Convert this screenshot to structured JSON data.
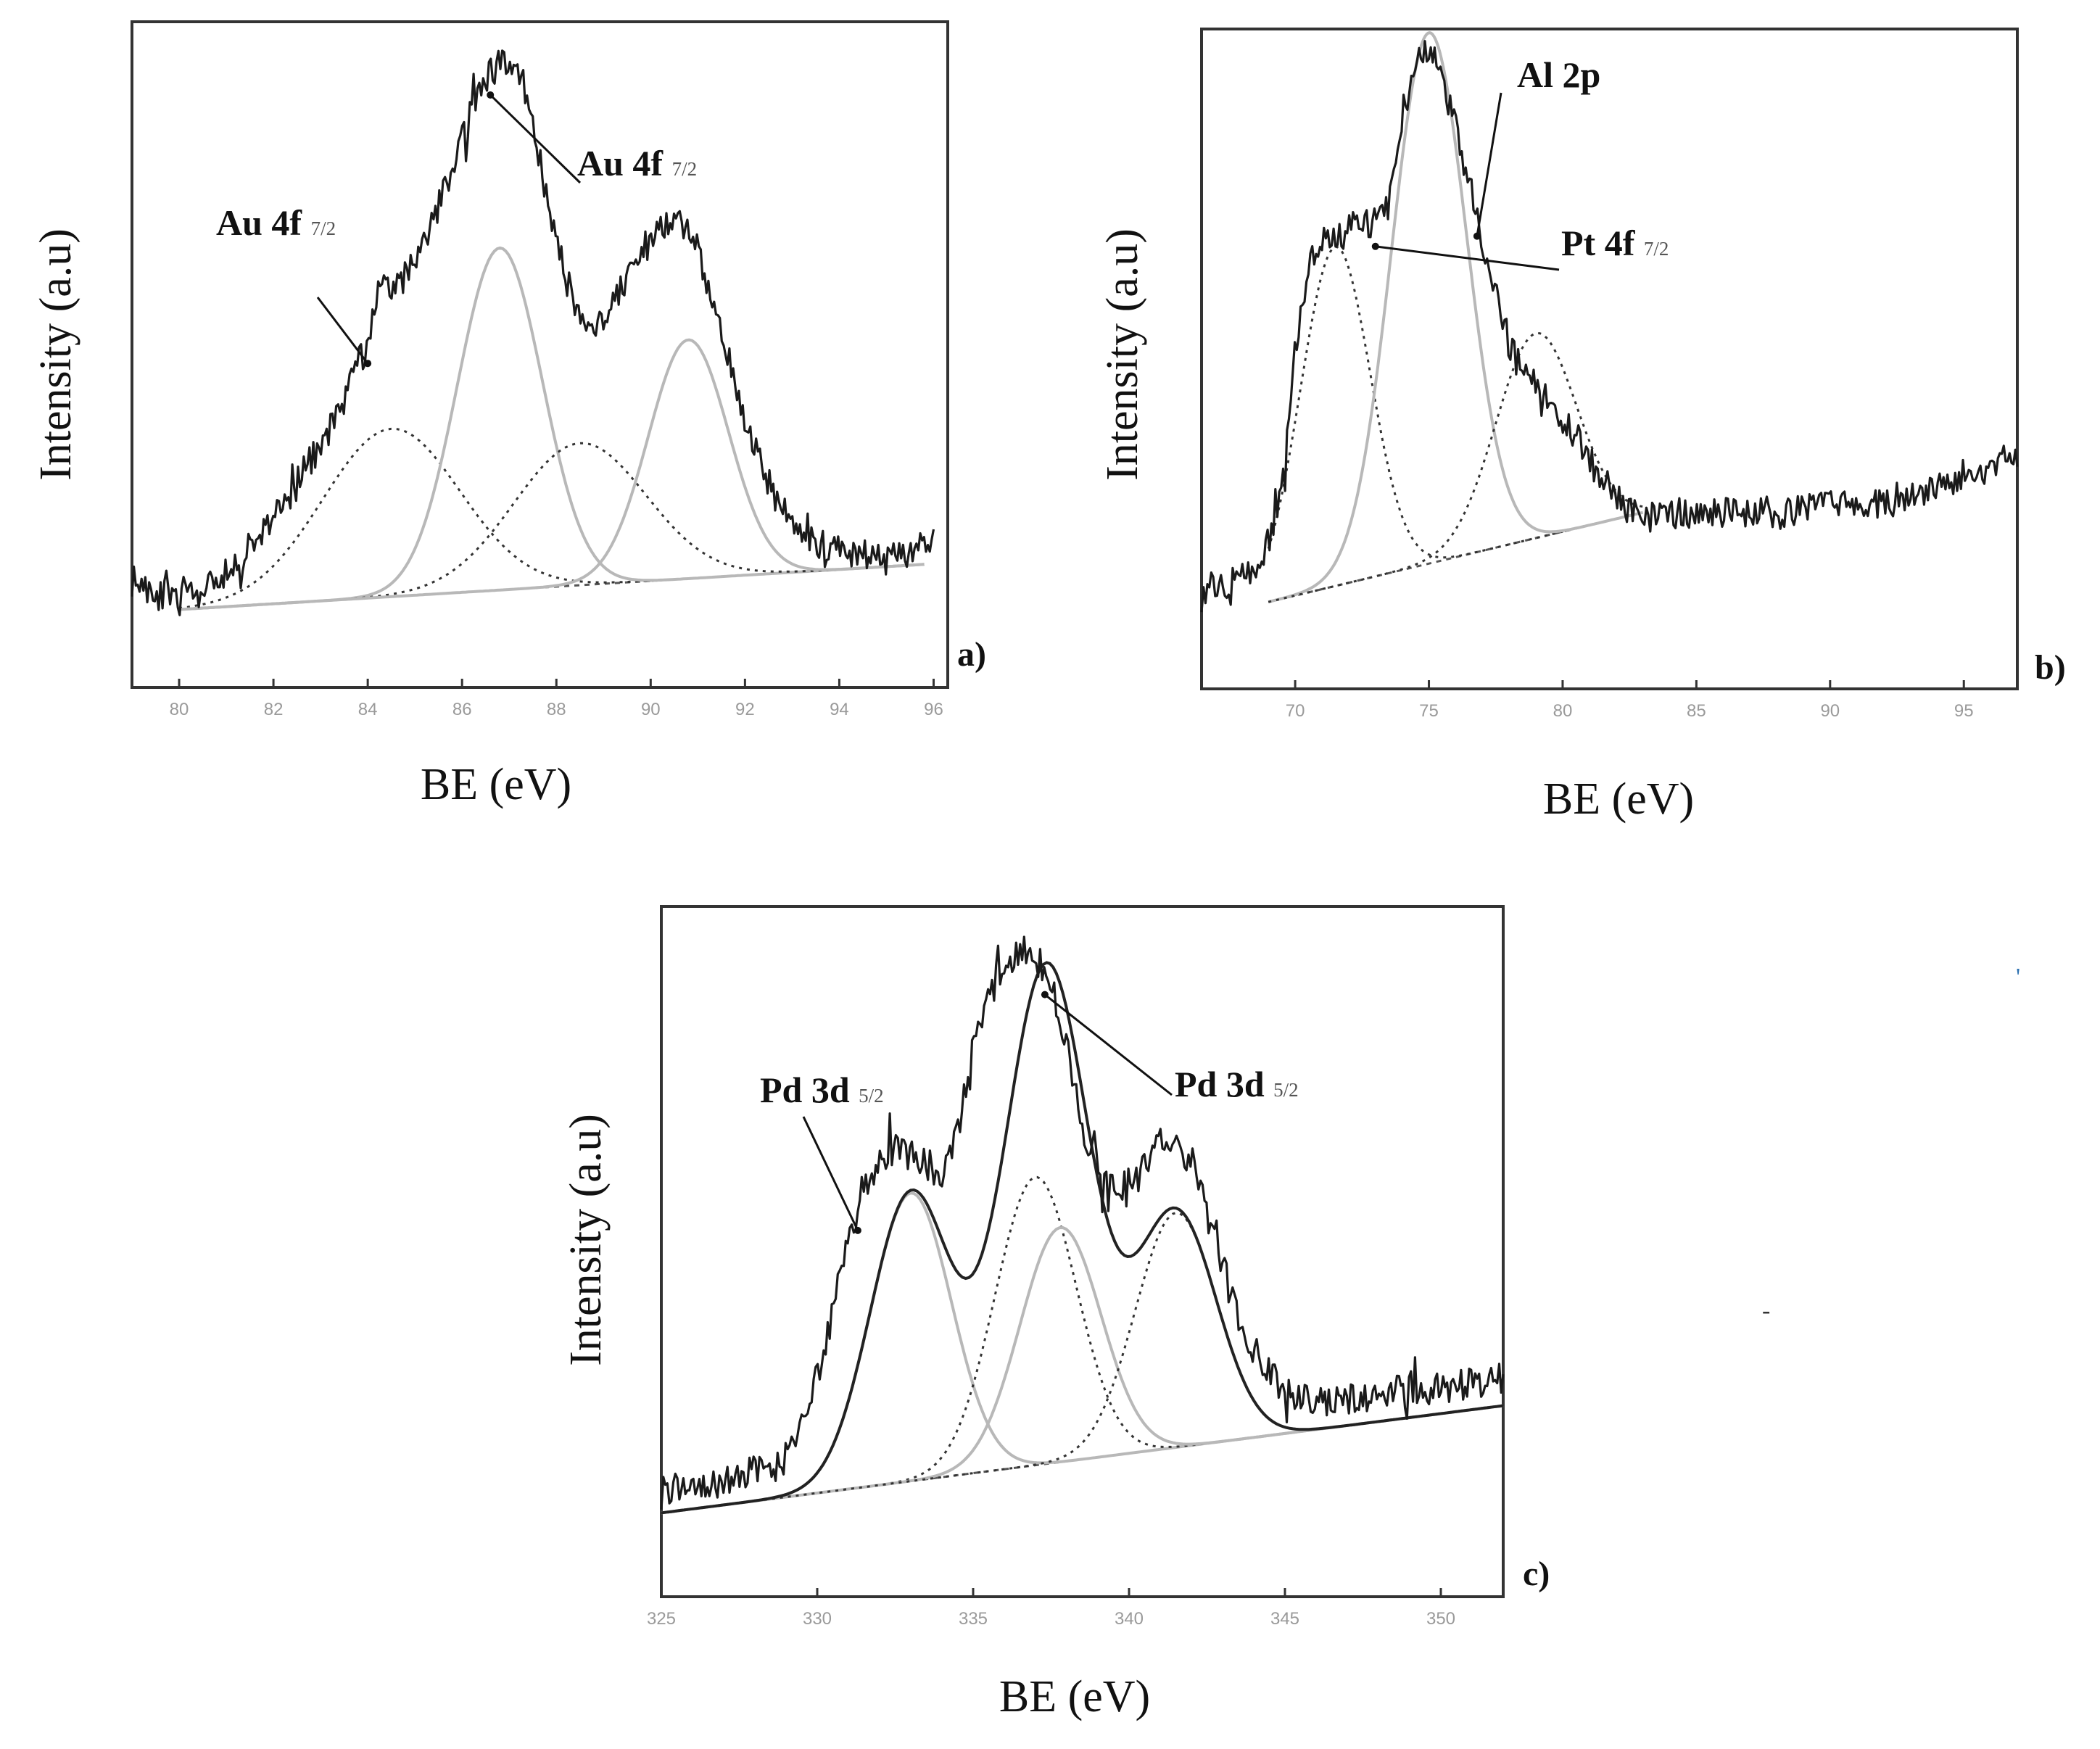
{
  "colors": {
    "raw": "#1a1a1a",
    "fit_main": "#b8b8b8",
    "fit_alt": "#333333",
    "background_line": "#555555",
    "envelope": "#222222"
  },
  "chart_data": [
    {
      "type": "line",
      "panel_label": "a)",
      "xlabel": "BE (eV)",
      "ylabel": "Intensity (a.u)",
      "xlim": [
        79,
        96.3
      ],
      "ylim": [
        0,
        1
      ],
      "x_ticks": [
        "80",
        "82",
        "84",
        "86",
        "88",
        "90",
        "92",
        "94",
        "96"
      ],
      "annotations": [
        {
          "main": "Au 4f",
          "sub": "7/2",
          "points_to": 84
        },
        {
          "main": "Au 4f",
          "sub": "7/2",
          "points_to": 86.6
        }
      ],
      "baseline": {
        "x": [
          80,
          95.8
        ],
        "y": [
          0.105,
          0.175
        ]
      },
      "components": [
        {
          "name": "peak-84.5",
          "style": "dotted",
          "center": 84.5,
          "height": 0.26,
          "width": 1.45
        },
        {
          "name": "peak-86.8",
          "style": "solid-light",
          "center": 86.8,
          "height": 0.53,
          "width": 0.9
        },
        {
          "name": "peak-88.5",
          "style": "dotted",
          "center": 88.5,
          "height": 0.22,
          "width": 1.4
        },
        {
          "name": "peak-90.8",
          "style": "solid-light",
          "center": 90.8,
          "height": 0.37,
          "width": 0.85
        }
      ],
      "raw_spectrum": {
        "x": [
          79,
          79.5,
          80,
          80.5,
          81,
          81.5,
          82,
          82.5,
          83,
          83.5,
          84,
          84.3,
          84.6,
          85,
          85.5,
          86,
          86.5,
          87,
          87.3,
          87.6,
          88,
          88.5,
          89,
          89.5,
          90,
          90.5,
          91,
          91.5,
          92,
          92.5,
          93,
          93.5,
          94,
          94.5,
          95,
          95.5,
          96
        ],
        "y": [
          0.15,
          0.13,
          0.12,
          0.13,
          0.16,
          0.2,
          0.25,
          0.3,
          0.36,
          0.43,
          0.52,
          0.62,
          0.6,
          0.64,
          0.73,
          0.84,
          0.93,
          0.96,
          0.92,
          0.82,
          0.67,
          0.55,
          0.55,
          0.62,
          0.68,
          0.72,
          0.66,
          0.53,
          0.4,
          0.3,
          0.24,
          0.21,
          0.2,
          0.19,
          0.18,
          0.19,
          0.21
        ]
      }
    },
    {
      "type": "line",
      "panel_label": "b)",
      "xlabel": "BE (eV)",
      "ylabel": "Intensity (a.u)",
      "xlim": [
        66.5,
        97
      ],
      "ylim": [
        0,
        1
      ],
      "x_ticks": [
        "70",
        "75",
        "80",
        "85",
        "90",
        "95"
      ],
      "annotations": [
        {
          "main": "Al 2p",
          "sub": "",
          "points_to": 76.8
        },
        {
          "main": "Pt 4f",
          "sub": "7/2",
          "points_to": 73
        }
      ],
      "baseline": {
        "x": [
          69,
          83
        ],
        "y": [
          0.12,
          0.26
        ]
      },
      "components": [
        {
          "name": "peak-71.5",
          "style": "dotted",
          "center": 71.5,
          "height": 0.53,
          "width": 1.3
        },
        {
          "name": "peak-75",
          "style": "solid-light",
          "center": 75,
          "height": 0.83,
          "width": 1.4
        },
        {
          "name": "peak-79",
          "style": "dotted",
          "center": 79,
          "height": 0.32,
          "width": 1.5
        }
      ],
      "raw_spectrum": {
        "x": [
          66.5,
          67.5,
          68.5,
          69.5,
          70,
          70.5,
          71,
          71.5,
          72,
          72.5,
          73,
          73.5,
          74,
          74.5,
          75,
          75.5,
          76,
          76.5,
          77,
          77.5,
          78,
          78.5,
          79,
          79.5,
          80,
          80.5,
          81,
          81.5,
          82,
          82.5,
          83,
          84,
          86,
          88,
          90,
          92,
          94,
          96,
          97
        ],
        "y": [
          0.14,
          0.15,
          0.16,
          0.28,
          0.52,
          0.64,
          0.68,
          0.68,
          0.7,
          0.72,
          0.71,
          0.74,
          0.88,
          0.96,
          0.98,
          0.94,
          0.86,
          0.78,
          0.69,
          0.61,
          0.52,
          0.48,
          0.46,
          0.44,
          0.41,
          0.38,
          0.34,
          0.31,
          0.28,
          0.26,
          0.25,
          0.26,
          0.26,
          0.26,
          0.27,
          0.28,
          0.3,
          0.33,
          0.35
        ]
      }
    },
    {
      "type": "line",
      "panel_label": "c)",
      "xlabel": "BE (eV)",
      "ylabel": "Intensity (a.u)",
      "xlim": [
        325,
        352
      ],
      "ylim": [
        0,
        1
      ],
      "x_ticks": [
        "325",
        "330",
        "335",
        "340",
        "345",
        "350"
      ],
      "annotations": [
        {
          "main": "Pd 3d",
          "sub": "5/2",
          "points_to": 331.3
        },
        {
          "main": "Pd 3d",
          "sub": "5/2",
          "points_to": 337.3
        }
      ],
      "baseline": {
        "x": [
          325,
          352
        ],
        "y": [
          0.11,
          0.27
        ]
      },
      "components": [
        {
          "name": "peak-333",
          "style": "solid-light",
          "center": 333,
          "height": 0.43,
          "width": 1.3
        },
        {
          "name": "peak-337",
          "style": "dotted",
          "center": 337,
          "height": 0.43,
          "width": 1.3
        },
        {
          "name": "peak-337.8",
          "style": "solid-light",
          "center": 337.8,
          "height": 0.35,
          "width": 1.3
        },
        {
          "name": "peak-341.5",
          "style": "dotted",
          "center": 341.5,
          "height": 0.35,
          "width": 1.3
        }
      ],
      "envelope_visible": true,
      "raw_spectrum": {
        "x": [
          325,
          326,
          327,
          328,
          328.5,
          329,
          329.5,
          330,
          330.5,
          331,
          331.5,
          332,
          332.5,
          333,
          333.5,
          334,
          334.5,
          335,
          335.5,
          336,
          336.5,
          337,
          337.5,
          338,
          338.5,
          339,
          339.5,
          340,
          340.5,
          341,
          341.5,
          342,
          342.5,
          343,
          343.5,
          344,
          345,
          346,
          347,
          348,
          349,
          350,
          351,
          352
        ],
        "y": [
          0.14,
          0.15,
          0.16,
          0.17,
          0.17,
          0.19,
          0.24,
          0.32,
          0.41,
          0.51,
          0.6,
          0.64,
          0.65,
          0.65,
          0.63,
          0.62,
          0.68,
          0.8,
          0.89,
          0.92,
          0.95,
          0.94,
          0.9,
          0.8,
          0.69,
          0.62,
          0.6,
          0.6,
          0.63,
          0.66,
          0.66,
          0.63,
          0.56,
          0.48,
          0.4,
          0.35,
          0.29,
          0.28,
          0.28,
          0.29,
          0.29,
          0.3,
          0.3,
          0.31
        ]
      }
    }
  ],
  "stray_marks": [
    "'",
    "-"
  ]
}
